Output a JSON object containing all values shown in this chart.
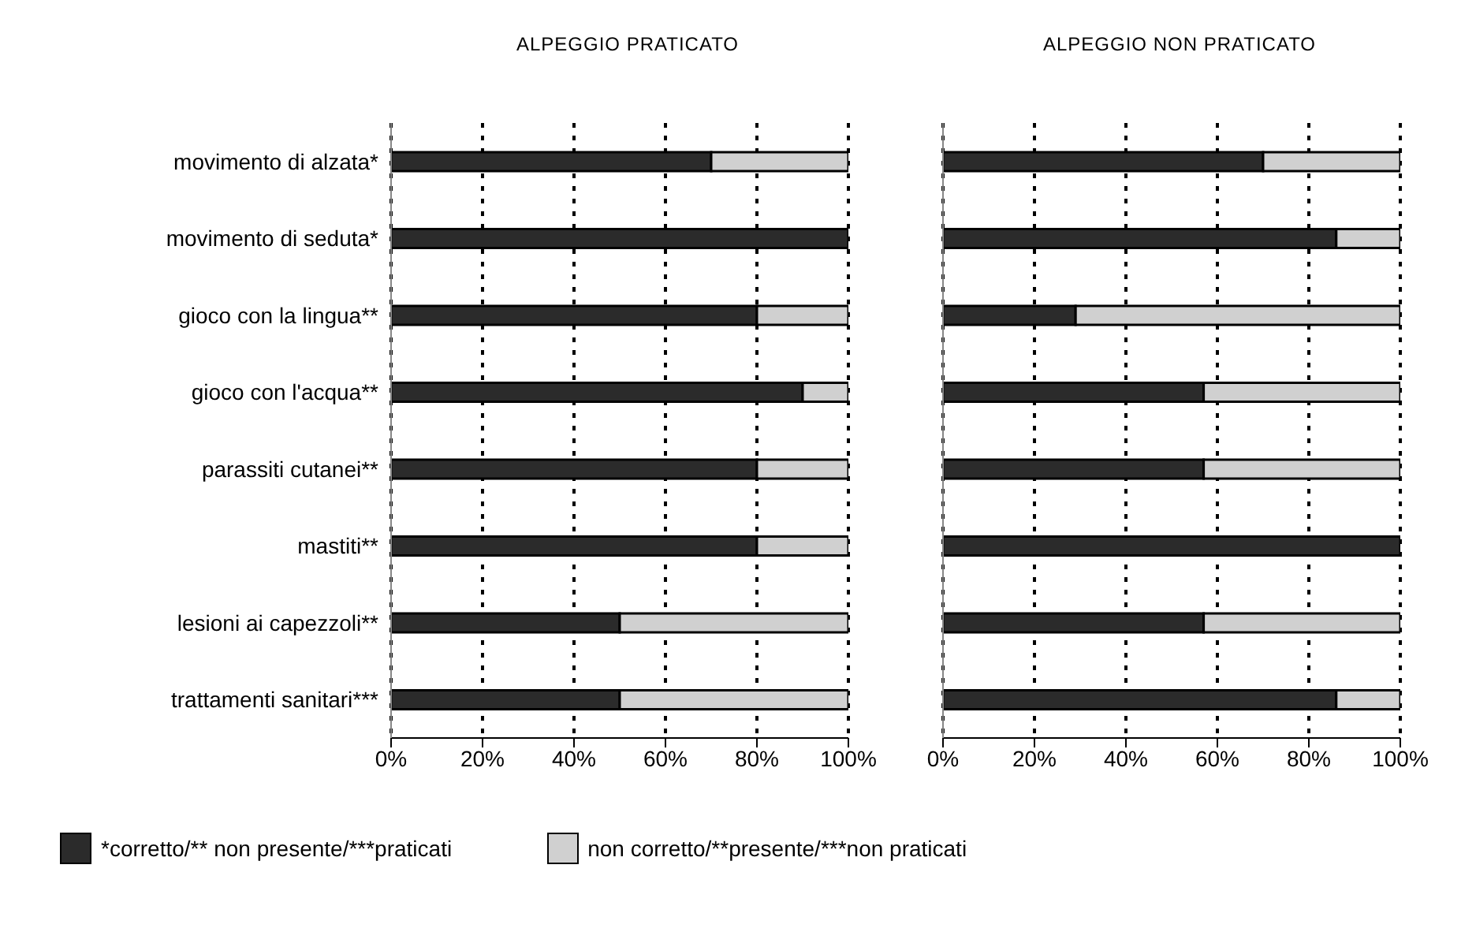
{
  "chart_data": [
    {
      "type": "bar",
      "orientation": "horizontal",
      "stacked": true,
      "title": "ALPEGGIO PRATICATO",
      "categories": [
        "movimento di alzata*",
        "movimento di seduta*",
        "gioco con la lingua**",
        "gioco con  l'acqua**",
        "parassiti cutanei**",
        "mastiti**",
        "lesioni ai capezzoli**",
        "trattamenti sanitari***"
      ],
      "series": [
        {
          "name": "*corretto/** non presente/***praticati",
          "color": "#2b2b2b",
          "values": [
            70,
            100,
            80,
            90,
            80,
            80,
            50,
            50
          ]
        },
        {
          "name": "non corretto/**presente/***non praticati",
          "color": "#d0d0d0",
          "values": [
            30,
            0,
            20,
            10,
            20,
            20,
            50,
            50
          ]
        }
      ],
      "xlim": [
        0,
        100
      ],
      "xticks": [
        {
          "value": 0,
          "label": "0%"
        },
        {
          "value": 20,
          "label": "20%"
        },
        {
          "value": 40,
          "label": "40%"
        },
        {
          "value": 60,
          "label": "60%"
        },
        {
          "value": 80,
          "label": "80%"
        },
        {
          "value": 100,
          "label": "100%"
        }
      ],
      "grid": "x",
      "legend": "bottom"
    },
    {
      "type": "bar",
      "orientation": "horizontal",
      "stacked": true,
      "title": "ALPEGGIO NON PRATICATO",
      "categories": [
        null,
        null,
        null,
        null,
        null,
        null,
        null,
        null
      ],
      "series": [
        {
          "color": "#2b2b2b",
          "values": [
            70,
            86,
            29,
            57,
            57,
            100,
            57,
            86
          ]
        },
        {
          "color": "#d0d0d0",
          "values": [
            30,
            14,
            71,
            43,
            43,
            0,
            43,
            14
          ]
        }
      ],
      "xlim": [
        0,
        100
      ],
      "xticks": [
        {
          "value": 0,
          "label": "0%"
        },
        {
          "value": 20,
          "label": "20%"
        },
        {
          "value": 40,
          "label": "40%"
        },
        {
          "value": 60,
          "label": "60%"
        },
        {
          "value": 80,
          "label": "80%"
        },
        {
          "value": 100,
          "label": "100%"
        }
      ],
      "grid": "x",
      "tick_labels": "x"
    }
  ]
}
